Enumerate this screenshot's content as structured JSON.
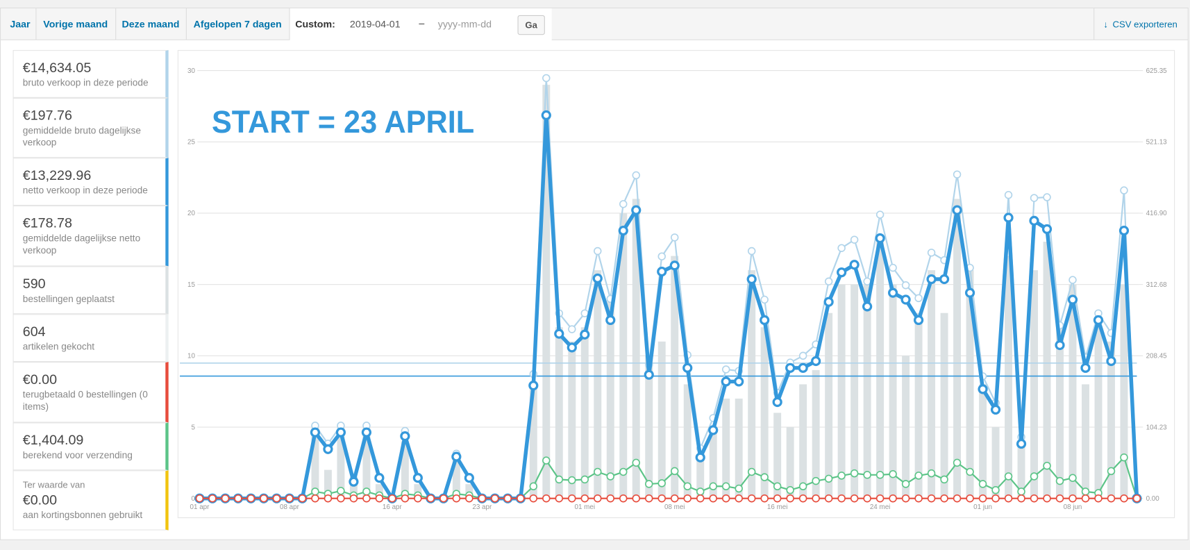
{
  "tabs": [
    "Jaar",
    "Vorige maand",
    "Deze maand",
    "Afgelopen 7 dagen"
  ],
  "custom": {
    "label": "Custom:",
    "start": "2019-04-01",
    "separator": "–",
    "end_placeholder": "yyyy-mm-dd",
    "button": "Ga"
  },
  "export": "CSV exporteren",
  "summary": [
    {
      "amount": "€14,634.05",
      "description": "bruto verkoop in deze periode",
      "color": "#b1d4ea"
    },
    {
      "amount": "€197.76",
      "description": "gemiddelde bruto dagelijkse verkoop",
      "color": "#b1d4ea"
    },
    {
      "amount": "€13,229.96",
      "description": "netto verkoop in deze periode",
      "color": "#3498db"
    },
    {
      "amount": "€178.78",
      "description": "gemiddelde dagelijkse netto verkoop",
      "color": "#3498db"
    },
    {
      "amount": "590",
      "description": "bestellingen geplaatst",
      "color": "#dbe1e3"
    },
    {
      "amount": "604",
      "description": "artikelen gekocht",
      "color": "#ecf0f1"
    },
    {
      "amount": "€0.00",
      "description": "terugbetaald 0 bestellingen (0 items)",
      "color": "#e74c3c"
    },
    {
      "amount": "€1,404.09",
      "description": "berekend voor verzending",
      "color": "#5cc488"
    },
    {
      "prefix": "Ter waarde van",
      "amount": "€0.00",
      "description": "aan kortingsbonnen gebruikt",
      "color": "#f1c40f"
    }
  ],
  "chart_data": {
    "type": "combo",
    "annotation": "START = 23 APRIL",
    "annotation_color": "#3498db",
    "grid": true,
    "categories": [
      "01 apr",
      null,
      null,
      null,
      null,
      null,
      null,
      "08 apr",
      null,
      null,
      null,
      null,
      null,
      null,
      null,
      "16 apr",
      null,
      null,
      null,
      null,
      null,
      null,
      "23 apr",
      null,
      null,
      null,
      null,
      null,
      null,
      null,
      "01 mei",
      null,
      null,
      null,
      null,
      null,
      null,
      "08 mei",
      null,
      null,
      null,
      null,
      null,
      null,
      null,
      "16 mei",
      null,
      null,
      null,
      null,
      null,
      null,
      null,
      "24 mei",
      null,
      null,
      null,
      null,
      null,
      null,
      null,
      "01 jun",
      null,
      null,
      null,
      null,
      null,
      null,
      "08 jun",
      null,
      null,
      null,
      null,
      null
    ],
    "ylim": [
      0,
      30
    ],
    "yticks": [
      0,
      5,
      10,
      15,
      20,
      25,
      30
    ],
    "y2lim": [
      0,
      625.35
    ],
    "y2ticks": [
      {
        "value": 0,
        "label": "0.00"
      },
      104.23,
      208.45,
      312.68,
      {
        "value": 416.9,
        "label": "416.90"
      },
      521.13,
      625.35
    ],
    "reference_lines": [
      {
        "value": 197.76,
        "color": "#b1d4ea",
        "axis": "y2"
      },
      {
        "value": 178.78,
        "color": "#3498db",
        "axis": "y2"
      }
    ],
    "series": [
      {
        "type": "bar",
        "color": "#dbe1e3",
        "axis": "y",
        "values": [
          0,
          0,
          0,
          0,
          0,
          0,
          0,
          0,
          0,
          5,
          2,
          5,
          1,
          5,
          1,
          0,
          4,
          1,
          0,
          0,
          3,
          1,
          0,
          0,
          0,
          0,
          8,
          29,
          12,
          11,
          12,
          16,
          14,
          20,
          21,
          10,
          11,
          17,
          8,
          3,
          5,
          7,
          7,
          16,
          12,
          6,
          5,
          8,
          9,
          13,
          15,
          15,
          15,
          18,
          15,
          10,
          13,
          16,
          13,
          21,
          16,
          8,
          5,
          17,
          4,
          16,
          18,
          12,
          15,
          8,
          12,
          11,
          15,
          0
        ]
      },
      {
        "type": "line",
        "color": "#b1d4ea",
        "axis": "y2",
        "line_width": 2,
        "values": [
          0,
          0,
          0,
          0,
          0,
          0,
          0,
          0,
          0,
          106.4,
          80,
          106.4,
          28.8,
          106.4,
          31,
          0,
          98.7,
          31,
          0,
          0,
          65.4,
          31,
          0,
          0,
          0,
          0,
          181.8,
          614.3,
          270.5,
          247.3,
          270.5,
          361.5,
          291.6,
          430.2,
          472.3,
          195.1,
          353.7,
          381.4,
          209.6,
          73.2,
          117.5,
          188.5,
          186.3,
          361.5,
          290.5,
          154.1,
          198.5,
          208.5,
          225.1,
          317.1,
          365.9,
          378.1,
          317.1,
          414.7,
          337.1,
          311.6,
          292.7,
          359.2,
          348.2,
          473.5,
          337.1,
          178.5,
          139.7,
          443.5,
          89.8,
          439.1,
          440.2,
          252.8,
          319.3,
          206.2,
          270.5,
          241.7,
          450.2,
          0
        ]
      },
      {
        "type": "line",
        "color": "#5cc488",
        "axis": "y2",
        "line_width": 2,
        "values": [
          0,
          0,
          0,
          0,
          0,
          0,
          0,
          0,
          0,
          10,
          6.7,
          11,
          4.4,
          10,
          4.4,
          0,
          6.7,
          4.4,
          0,
          0,
          6.7,
          4.4,
          0,
          0,
          0,
          0,
          17.7,
          55.4,
          27.7,
          26.6,
          27.7,
          38.8,
          32.2,
          38.8,
          52.1,
          21.1,
          22.2,
          39.9,
          17.7,
          10,
          17.7,
          17.7,
          14.4,
          38.8,
          31,
          17.7,
          12.2,
          17.7,
          25.5,
          28.8,
          33.3,
          36.6,
          34.4,
          34.4,
          35.5,
          21.1,
          33.3,
          36.6,
          27.7,
          52.1,
          38.8,
          21.1,
          12.2,
          32.2,
          10,
          32.2,
          47.7,
          25.5,
          29.9,
          10,
          7.8,
          39.9,
          59.9,
          0
        ]
      },
      {
        "type": "line",
        "color": "#3498db",
        "axis": "y2",
        "line_width": 5,
        "values": [
          0,
          0,
          0,
          0,
          0,
          0,
          0,
          0,
          0,
          96.5,
          72,
          96.5,
          24.4,
          96.5,
          30,
          0,
          91,
          30,
          0,
          0,
          61,
          30,
          0,
          0,
          0,
          0,
          165,
          560,
          240.6,
          220.6,
          239.5,
          321.5,
          260.6,
          391.4,
          421.3,
          180.7,
          331.5,
          340.4,
          190.7,
          59.9,
          99.8,
          170.8,
          170.8,
          320.4,
          260.6,
          140.8,
          190.7,
          190.7,
          200.7,
          287.2,
          330.4,
          341.5,
          280.5,
          380.3,
          300.5,
          290.5,
          260.6,
          320.4,
          320.4,
          421.3,
          300.5,
          159.7,
          129.7,
          410.3,
          79.8,
          405.8,
          393.6,
          224,
          290.5,
          190.7,
          260.6,
          200.7,
          391.4,
          0
        ]
      },
      {
        "type": "line",
        "color": "#e74c3c",
        "axis": "y2",
        "line_width": 2,
        "values": [
          0,
          0,
          0,
          0,
          0,
          0,
          0,
          0,
          0,
          0,
          0,
          0,
          0,
          0,
          0,
          0,
          0,
          0,
          0,
          0,
          0,
          0,
          0,
          0,
          0,
          0,
          0,
          0,
          0,
          0,
          0,
          0,
          0,
          0,
          0,
          0,
          0,
          0,
          0,
          0,
          0,
          0,
          0,
          0,
          0,
          0,
          0,
          0,
          0,
          0,
          0,
          0,
          0,
          0,
          0,
          0,
          0,
          0,
          0,
          0,
          0,
          0,
          0,
          0,
          0,
          0,
          0,
          0,
          0,
          0,
          0,
          0,
          0,
          0
        ]
      }
    ]
  }
}
